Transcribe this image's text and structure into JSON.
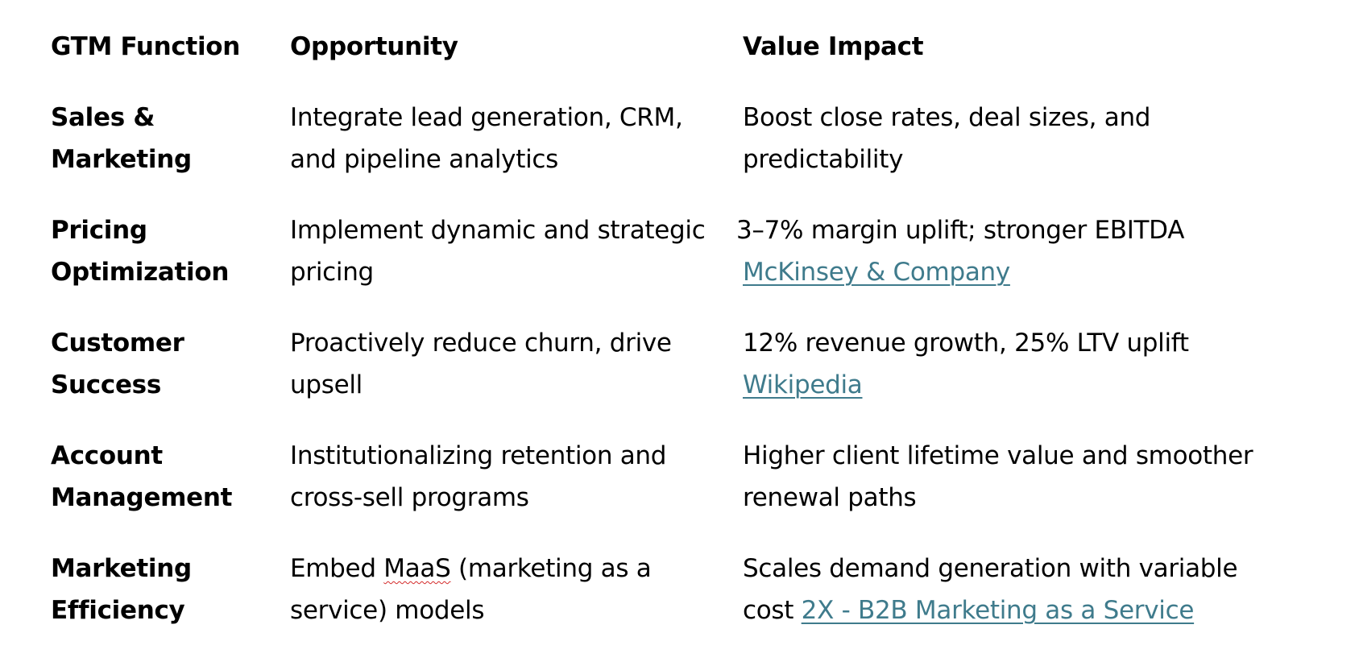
{
  "table": {
    "headers": {
      "function": "GTM Function",
      "opportunity": "Opportunity",
      "impact": "Value Impact"
    },
    "rows": [
      {
        "function": [
          "Sales &",
          "Marketing"
        ],
        "opportunity": [
          "Integrate lead generation, CRM,",
          "and pipeline analytics"
        ],
        "impact": [
          "Boost close rates, deal sizes, and",
          "predictability"
        ]
      },
      {
        "function": [
          "Pricing",
          "Optimization"
        ],
        "opportunity": [
          "Implement dynamic and strategic",
          "pricing"
        ],
        "impact": [
          "3–7% margin uplift; stronger EBITDA"
        ],
        "impact_link": "McKinsey  &  Company"
      },
      {
        "function": [
          "Customer",
          "Success"
        ],
        "opportunity": [
          "Proactively reduce churn, drive",
          "upsell"
        ],
        "impact": [
          "12% revenue growth, 25% LTV uplift"
        ],
        "impact_link": "Wikipedia"
      },
      {
        "function": [
          "Account",
          "Management"
        ],
        "opportunity": [
          "Institutionalizing retention and",
          "cross-sell programs"
        ],
        "impact": [
          "Higher client lifetime value and smoother",
          "renewal paths"
        ]
      },
      {
        "function": [
          "Marketing",
          "Efficiency"
        ],
        "opportunity_parts": {
          "before": "Embed ",
          "flagged": "MaaS",
          "after": " (marketing as a",
          "line2": "service) models"
        },
        "impact": [
          "Scales demand generation with variable"
        ],
        "impact_line2_text": "cost ",
        "impact_link": "2X - B2B Marketing as a Service"
      }
    ]
  },
  "colors": {
    "text": "#000000",
    "link": "#3f7b8c",
    "spellcheck": "#d42a2a"
  }
}
